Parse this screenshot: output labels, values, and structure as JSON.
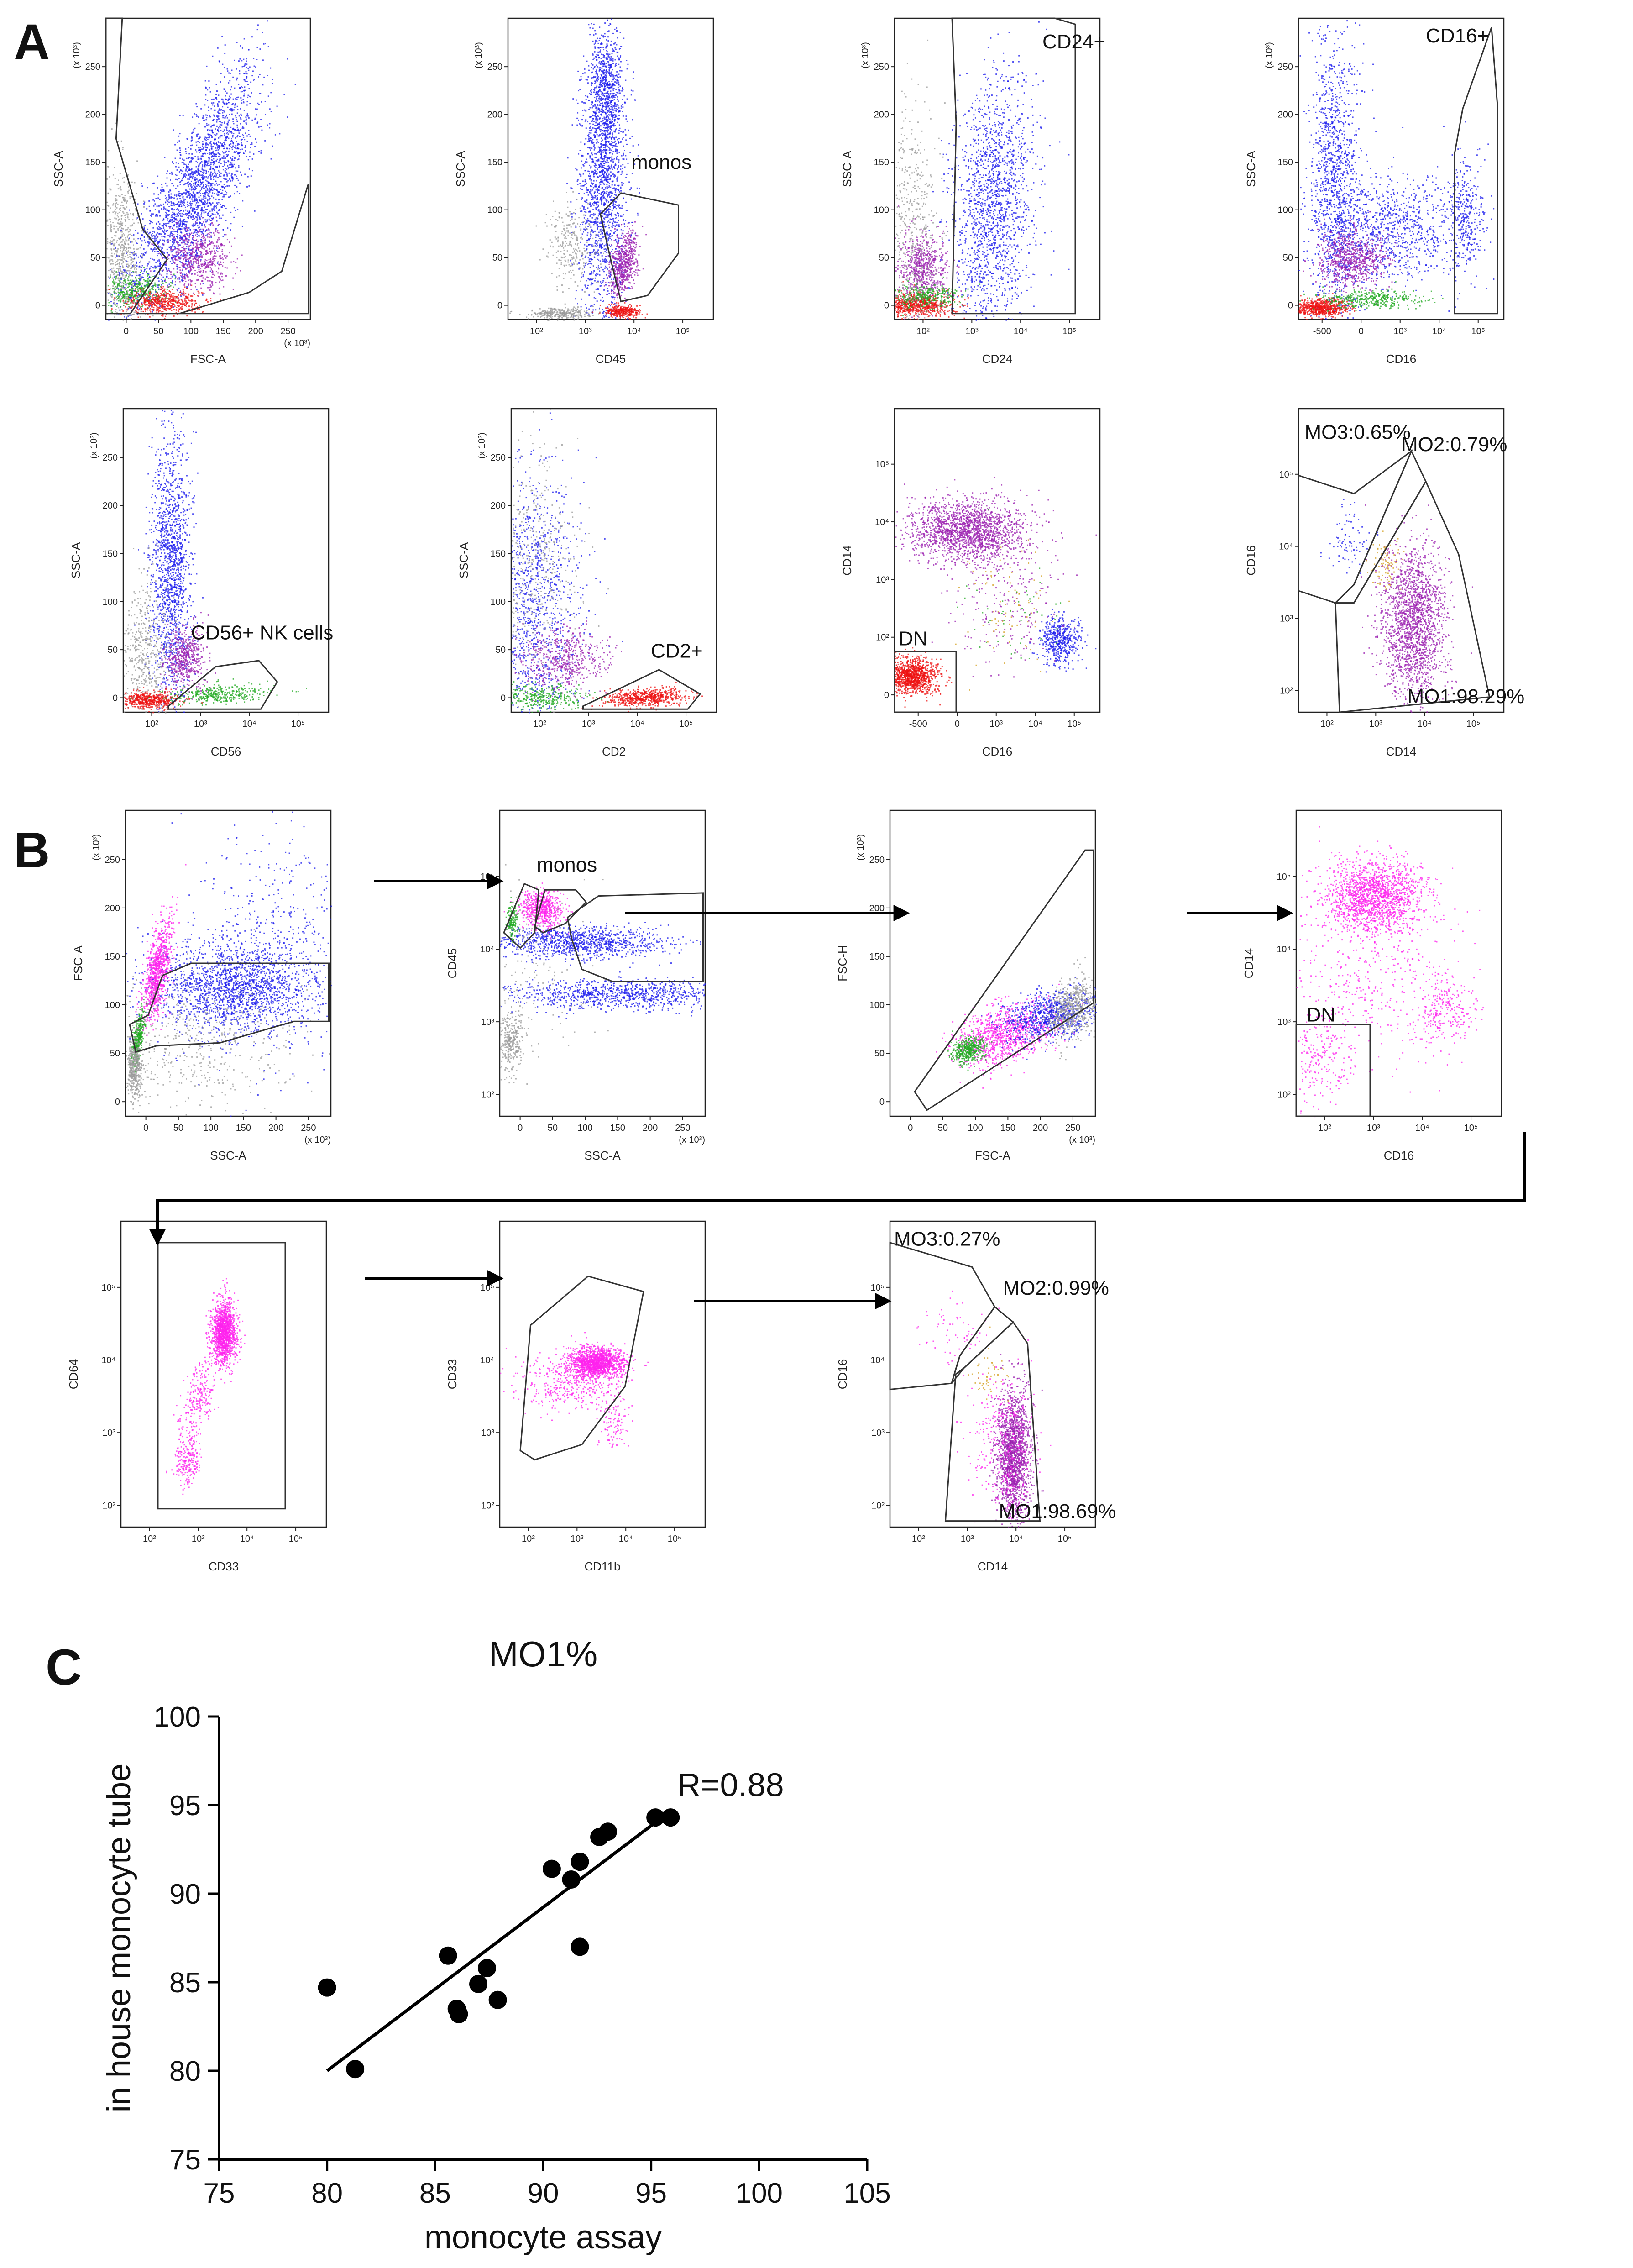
{
  "panel_labels": [
    "A",
    "B",
    "C"
  ],
  "colors": {
    "blue": "#1a1aee",
    "purple": "#9b1fb0",
    "red": "#ee1111",
    "green": "#22aa22",
    "gray": "#9a9a9a",
    "magenta": "#ff22ee",
    "orange": "#d4a020",
    "black": "#000000"
  },
  "icons": [
    "arrow-right-icon",
    "arrow-elbow-icon"
  ],
  "cytometry": {
    "A": {
      "plots": [
        {
          "id": "a1",
          "x_label": "FSC-A",
          "y_label": "SSC-A",
          "x_scale": "linear",
          "y_scale": "linear",
          "x_ticks": [
            "0",
            "50",
            "100",
            "150",
            "200",
            "250"
          ],
          "x_unit": "(x 10³)",
          "y_ticks": [
            "0",
            "50",
            "100",
            "150",
            "200",
            "250"
          ],
          "y_unit": "(x 10³)",
          "annotations": []
        },
        {
          "id": "a2",
          "x_label": "CD45",
          "y_label": "SSC-A",
          "x_scale": "log",
          "y_scale": "linear",
          "x_ticks": [
            "10²",
            "10³",
            "10⁴",
            "10⁵"
          ],
          "y_ticks": [
            "0",
            "50",
            "100",
            "150",
            "200",
            "250"
          ],
          "y_unit": "(x 10³)",
          "annotations": [
            "monos"
          ]
        },
        {
          "id": "a3",
          "x_label": "CD24",
          "y_label": "SSC-A",
          "x_scale": "log",
          "y_scale": "linear",
          "x_ticks": [
            "10²",
            "10³",
            "10⁴",
            "10⁵"
          ],
          "y_ticks": [
            "0",
            "50",
            "100",
            "150",
            "200",
            "250"
          ],
          "y_unit": "(x 10³)",
          "annotations": [
            "CD24+"
          ]
        },
        {
          "id": "a4",
          "x_label": "CD16",
          "y_label": "SSC-A",
          "x_scale": "biex",
          "y_scale": "linear",
          "x_ticks": [
            "-500",
            "0",
            "10³",
            "10⁴",
            "10⁵"
          ],
          "y_ticks": [
            "0",
            "50",
            "100",
            "150",
            "200",
            "250"
          ],
          "y_unit": "(x 10³)",
          "annotations": [
            "CD16+"
          ]
        },
        {
          "id": "a5",
          "x_label": "CD56",
          "y_label": "SSC-A",
          "x_scale": "log",
          "y_scale": "linear",
          "x_ticks": [
            "10²",
            "10³",
            "10⁴",
            "10⁵"
          ],
          "y_ticks": [
            "0",
            "50",
            "100",
            "150",
            "200",
            "250"
          ],
          "y_unit": "(x 10³)",
          "annotations": [
            "CD56+ NK cells"
          ]
        },
        {
          "id": "a6",
          "x_label": "CD2",
          "y_label": "SSC-A",
          "x_scale": "log",
          "y_scale": "linear",
          "x_ticks": [
            "10²",
            "10³",
            "10⁴",
            "10⁵"
          ],
          "y_ticks": [
            "0",
            "50",
            "100",
            "150",
            "200",
            "250"
          ],
          "y_unit": "(x 10³)",
          "annotations": [
            "CD2+"
          ]
        },
        {
          "id": "a7",
          "x_label": "CD16",
          "y_label": "CD14",
          "x_scale": "biex",
          "y_scale": "biex",
          "x_ticks": [
            "-500",
            "0",
            "10³",
            "10⁴",
            "10⁵"
          ],
          "y_ticks": [
            "0",
            "10²",
            "10³",
            "10⁴",
            "10⁵"
          ],
          "annotations": [
            "DN"
          ]
        },
        {
          "id": "a8",
          "x_label": "CD14",
          "y_label": "CD16",
          "x_scale": "log",
          "y_scale": "log",
          "x_ticks": [
            "10²",
            "10³",
            "10⁴",
            "10⁵"
          ],
          "y_ticks": [
            "10²",
            "10³",
            "10⁴",
            "10⁵"
          ],
          "annotations": [
            "MO3:0.65%",
            "MO2:0.79%",
            "MO1:98.29%"
          ]
        }
      ]
    },
    "B": {
      "plots": [
        {
          "id": "b1",
          "x_label": "SSC-A",
          "y_label": "FSC-A",
          "x_scale": "linear",
          "y_scale": "linear",
          "x_ticks": [
            "0",
            "50",
            "100",
            "150",
            "200",
            "250"
          ],
          "x_unit": "(x 10³)",
          "y_ticks": [
            "0",
            "50",
            "100",
            "150",
            "200",
            "250"
          ],
          "y_unit": "(x 10³)",
          "annotations": []
        },
        {
          "id": "b2",
          "x_label": "SSC-A",
          "y_label": "CD45",
          "x_scale": "linear",
          "y_scale": "log",
          "x_ticks": [
            "0",
            "50",
            "100",
            "150",
            "200",
            "250"
          ],
          "x_unit": "(x 10³)",
          "y_ticks": [
            "10²",
            "10³",
            "10⁴",
            "10⁵"
          ],
          "annotations": [
            "monos"
          ]
        },
        {
          "id": "b3",
          "x_label": "FSC-A",
          "y_label": "FSC-H",
          "x_scale": "linear",
          "y_scale": "linear",
          "x_ticks": [
            "0",
            "50",
            "100",
            "150",
            "200",
            "250"
          ],
          "x_unit": "(x 10³)",
          "y_ticks": [
            "0",
            "50",
            "100",
            "150",
            "200",
            "250"
          ],
          "y_unit": "(x 10³)",
          "annotations": []
        },
        {
          "id": "b4",
          "x_label": "CD16",
          "y_label": "CD14",
          "x_scale": "log",
          "y_scale": "log",
          "x_ticks": [
            "10²",
            "10³",
            "10⁴",
            "10⁵"
          ],
          "y_ticks": [
            "10²",
            "10³",
            "10⁴",
            "10⁵"
          ],
          "annotations": [
            "DN"
          ]
        },
        {
          "id": "b5",
          "x_label": "CD33",
          "y_label": "CD64",
          "x_scale": "log",
          "y_scale": "log",
          "x_ticks": [
            "10²",
            "10³",
            "10⁴",
            "10⁵"
          ],
          "y_ticks": [
            "10²",
            "10³",
            "10⁴",
            "10⁵"
          ],
          "annotations": []
        },
        {
          "id": "b6",
          "x_label": "CD11b",
          "y_label": "CD33",
          "x_scale": "log",
          "y_scale": "log",
          "x_ticks": [
            "10²",
            "10³",
            "10⁴",
            "10⁵"
          ],
          "y_ticks": [
            "10²",
            "10³",
            "10⁴",
            "10⁵"
          ],
          "annotations": []
        },
        {
          "id": "b7",
          "x_label": "CD14",
          "y_label": "CD16",
          "x_scale": "log",
          "y_scale": "log",
          "x_ticks": [
            "10²",
            "10³",
            "10⁴",
            "10⁵"
          ],
          "y_ticks": [
            "10²",
            "10³",
            "10⁴",
            "10⁵"
          ],
          "annotations": [
            "MO3:0.27%",
            "MO2:0.99%",
            "MO1:98.69%"
          ]
        }
      ]
    }
  },
  "chart_data": {
    "type": "scatter",
    "title": "MO1%",
    "xlabel": "monocyte assay",
    "ylabel": "in house monocyte tube",
    "xlim": [
      75,
      105
    ],
    "ylim": [
      75,
      100
    ],
    "x_ticks": [
      "75",
      "80",
      "85",
      "90",
      "95",
      "100",
      "105"
    ],
    "y_ticks": [
      "75",
      "80",
      "85",
      "90",
      "95",
      "100"
    ],
    "points": [
      {
        "x": 80.0,
        "y": 84.7
      },
      {
        "x": 81.3,
        "y": 80.1
      },
      {
        "x": 85.6,
        "y": 86.5
      },
      {
        "x": 86.0,
        "y": 83.5
      },
      {
        "x": 86.1,
        "y": 83.2
      },
      {
        "x": 87.0,
        "y": 84.9
      },
      {
        "x": 87.4,
        "y": 85.8
      },
      {
        "x": 87.9,
        "y": 84.0
      },
      {
        "x": 90.4,
        "y": 91.4
      },
      {
        "x": 91.3,
        "y": 90.8
      },
      {
        "x": 91.7,
        "y": 91.8
      },
      {
        "x": 91.7,
        "y": 87.0
      },
      {
        "x": 92.6,
        "y": 93.2
      },
      {
        "x": 93.0,
        "y": 93.5
      },
      {
        "x": 95.2,
        "y": 94.3
      },
      {
        "x": 95.9,
        "y": 94.3
      }
    ],
    "fit_line": {
      "x": [
        80,
        95.5
      ],
      "y": [
        80.0,
        94.3
      ]
    },
    "annotation": "R=0.88",
    "grid": false
  }
}
